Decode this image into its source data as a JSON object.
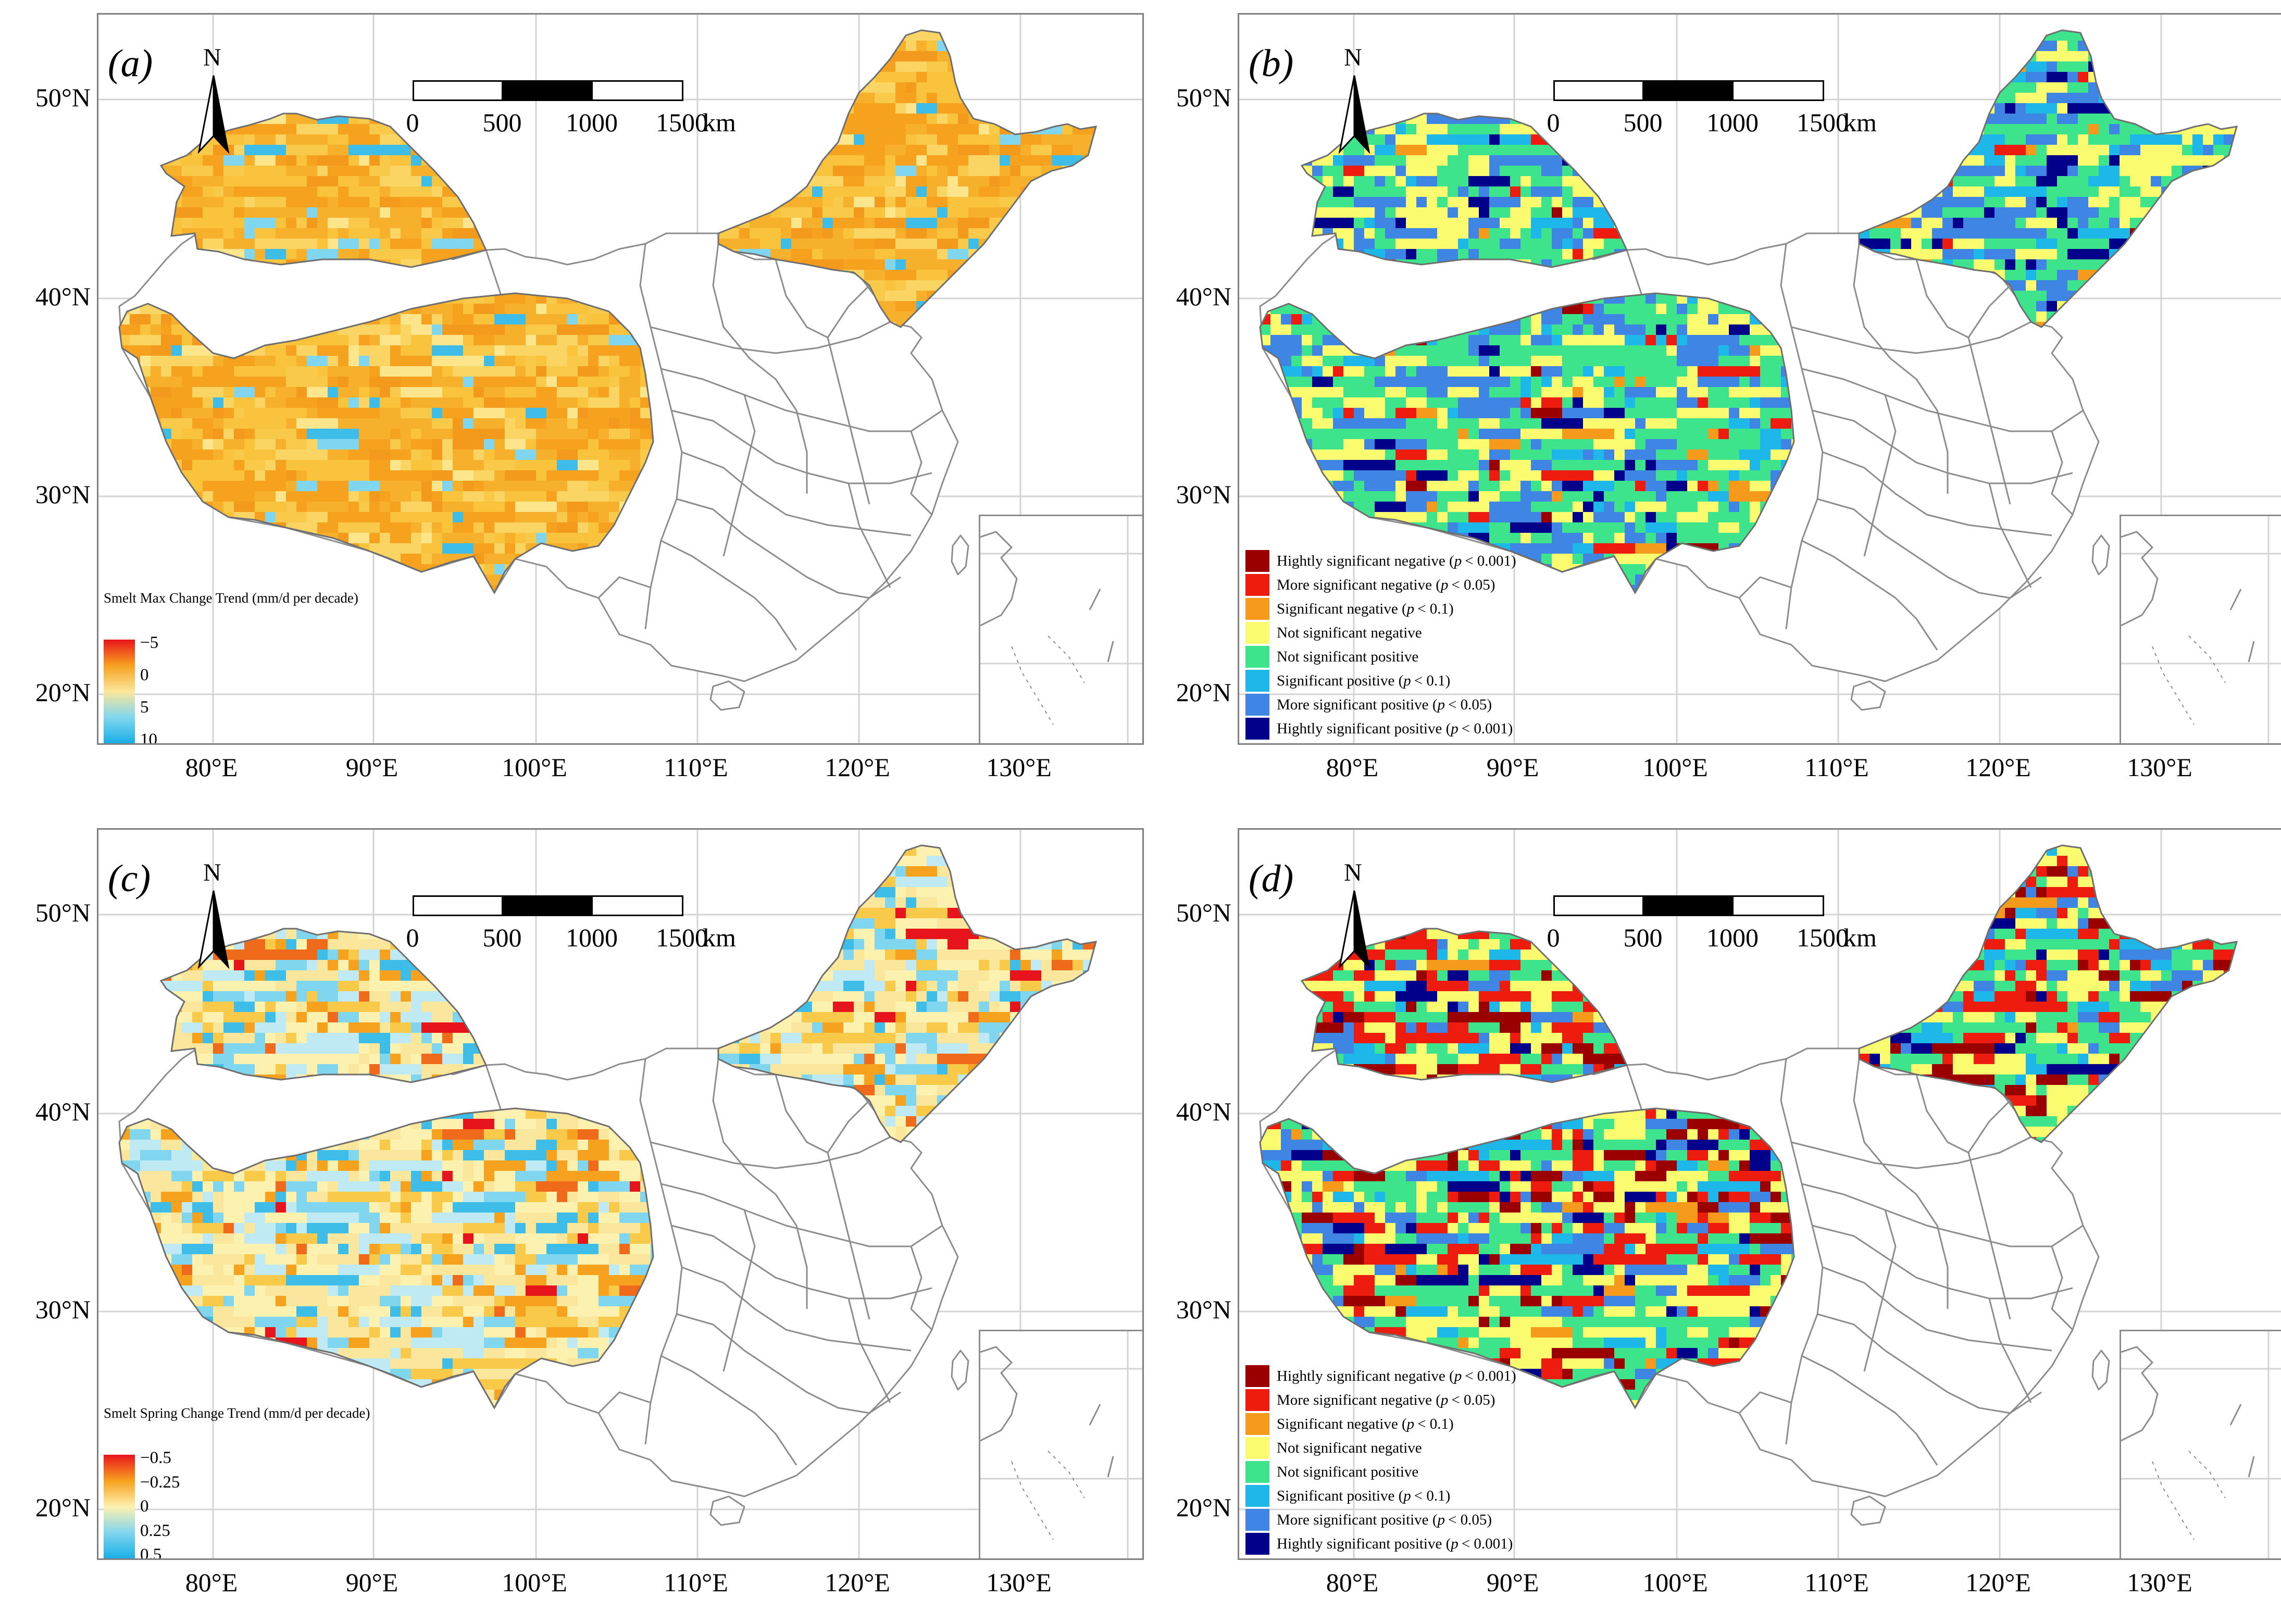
{
  "figure": {
    "lat_labels": [
      "50°N",
      "40°N",
      "30°N",
      "20°N"
    ],
    "lon_labels": [
      "80°E",
      "90°E",
      "100°E",
      "110°E",
      "120°E",
      "130°E"
    ],
    "north_letter": "N",
    "scale_bar": {
      "ticks": [
        "0",
        "500",
        "1000",
        "1500"
      ],
      "unit": "km"
    }
  },
  "colors": {
    "frame": "#7f7f7f",
    "graticule": "#d3d3d3",
    "boundary": "#8c8c8c"
  },
  "panels": [
    {
      "label": "(a)",
      "kind": "continuous",
      "legend": {
        "title": "Smelt  Max  Change  Trend (mm/d per decade)",
        "ticks": [
          "−5",
          "0",
          "5",
          "10"
        ],
        "colors": [
          "#e8141c",
          "#f7a21e",
          "#fbe79c",
          "#7fd6ee",
          "#17aee6"
        ]
      },
      "palette": [
        "#f7a21e",
        "#f6b02c",
        "#f9c33c",
        "#fbd563",
        "#fde58c",
        "#f39a1d",
        "#f9c94a",
        "#7fd6ee",
        "#3ebde8"
      ],
      "weights": [
        22,
        20,
        18,
        10,
        5,
        8,
        10,
        4,
        3
      ]
    },
    {
      "label": "(b)",
      "kind": "categorical",
      "legend": {
        "items": [
          {
            "text": "Hightly significant negative",
            "p": "p",
            "cond": "< 0.001",
            "color": "#9b0000"
          },
          {
            "text": "More significant negative",
            "p": "p",
            "cond": "< 0.05",
            "color": "#ee1c0e"
          },
          {
            "text": "Significant negative",
            "p": "p",
            "cond": "< 0.1",
            "color": "#f69a1b"
          },
          {
            "text": "Not significant negative",
            "p": "",
            "cond": "",
            "color": "#fbfb6f"
          },
          {
            "text": "Not significant positive",
            "p": "",
            "cond": "",
            "color": "#3ee48c"
          },
          {
            "text": "Significant positive",
            "p": "p",
            "cond": "< 0.1",
            "color": "#1eb7ea"
          },
          {
            "text": "More significant positive",
            "p": "p",
            "cond": "< 0.05",
            "color": "#3f86e4"
          },
          {
            "text": "Hightly significant positive",
            "p": "p",
            "cond": "< 0.001",
            "color": "#00008b"
          }
        ]
      },
      "palette": [
        "#3ee48c",
        "#fbfb6f",
        "#3f86e4",
        "#1eb7ea",
        "#00008b",
        "#ee1c0e",
        "#f69a1b",
        "#9b0000"
      ],
      "weights": [
        34,
        26,
        20,
        8,
        6,
        3,
        2,
        1
      ]
    },
    {
      "label": "(c)",
      "kind": "continuous",
      "legend": {
        "title": "Smelt  Spring  Change  Trend (mm/d per decade)",
        "ticks": [
          "−0.5",
          "−0.25",
          "0",
          "0.25",
          "0.5"
        ],
        "colors": [
          "#e8141c",
          "#f7a21e",
          "#fdf1b0",
          "#7fd6ee",
          "#17aee6"
        ]
      },
      "palette": [
        "#fdf1b0",
        "#fbe79c",
        "#f9c94a",
        "#f7a21e",
        "#bfe9f3",
        "#7fd6ee",
        "#3ebde8",
        "#ef6a1a",
        "#e8141c"
      ],
      "weights": [
        24,
        20,
        12,
        8,
        12,
        10,
        8,
        4,
        2
      ]
    },
    {
      "label": "(d)",
      "kind": "categorical",
      "legend": {
        "items": [
          {
            "text": "Hightly significant negative",
            "p": "p",
            "cond": "< 0.001",
            "color": "#9b0000"
          },
          {
            "text": "More significant negative",
            "p": "p",
            "cond": "< 0.05",
            "color": "#ee1c0e"
          },
          {
            "text": "Significant negative",
            "p": "p",
            "cond": "< 0.1",
            "color": "#f69a1b"
          },
          {
            "text": "Not significant negative",
            "p": "",
            "cond": "",
            "color": "#fbfb6f"
          },
          {
            "text": "Not significant positive",
            "p": "",
            "cond": "",
            "color": "#3ee48c"
          },
          {
            "text": "Significant positive",
            "p": "p",
            "cond": "< 0.1",
            "color": "#1eb7ea"
          },
          {
            "text": "More significant positive",
            "p": "p",
            "cond": "< 0.05",
            "color": "#3f86e4"
          },
          {
            "text": "Hightly significant positive",
            "p": "p",
            "cond": "< 0.001",
            "color": "#00008b"
          }
        ]
      },
      "palette": [
        "#fbfb6f",
        "#3ee48c",
        "#ee1c0e",
        "#9b0000",
        "#3f86e4",
        "#1eb7ea",
        "#00008b",
        "#f69a1b"
      ],
      "weights": [
        26,
        22,
        18,
        10,
        10,
        6,
        5,
        3
      ]
    }
  ]
}
